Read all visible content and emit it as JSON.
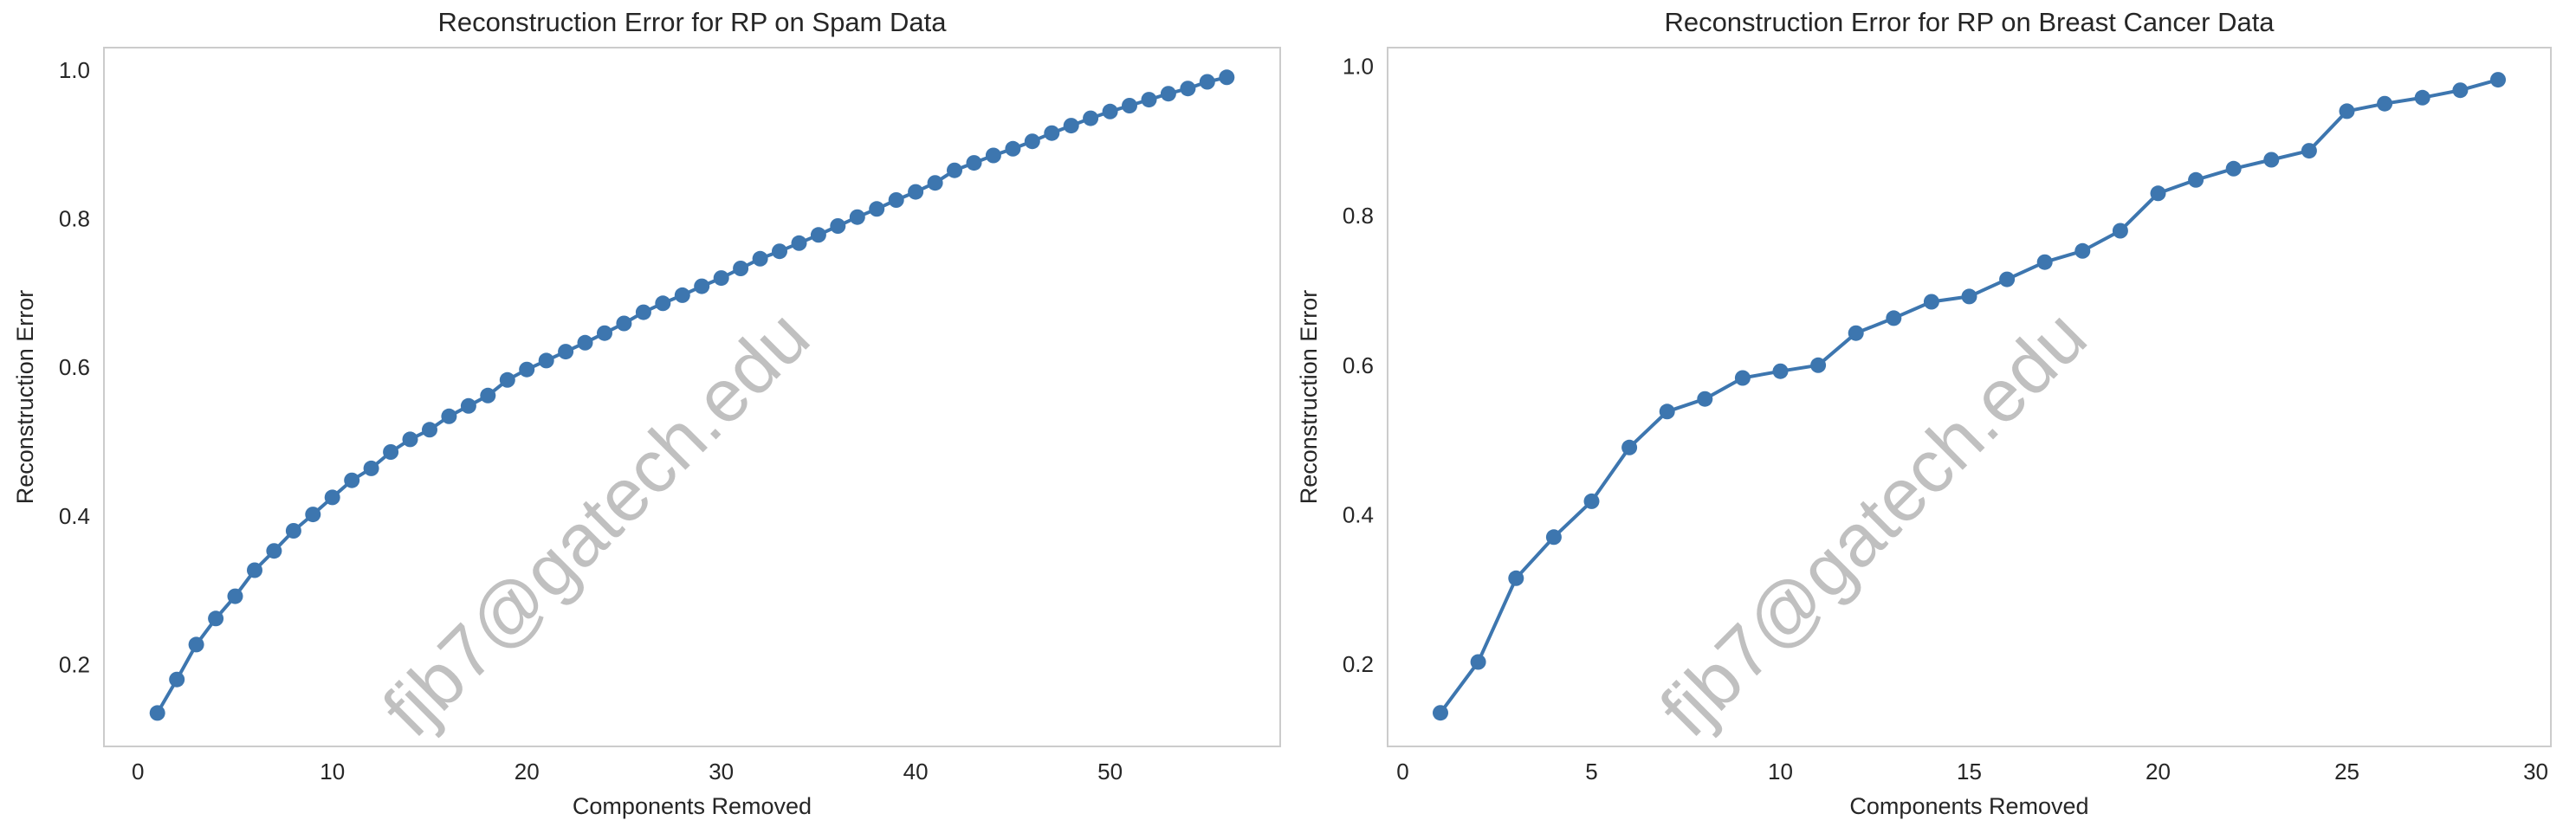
{
  "watermark": "fjb7@gatech.edu",
  "chart_data": [
    {
      "type": "line",
      "title": "Reconstruction Error for RP on Spam Data",
      "xlabel": "Components Removed",
      "ylabel": "Reconstruction Error",
      "xlim": [
        -1.75,
        58.75
      ],
      "ylim": [
        0.09,
        1.03
      ],
      "xticks": [
        0,
        10,
        20,
        30,
        40,
        50
      ],
      "yticks": [
        0.2,
        0.4,
        0.6,
        0.8,
        1.0
      ],
      "xtick_labels": [
        "0",
        "10",
        "20",
        "30",
        "40",
        "50"
      ],
      "ytick_labels": [
        "0.2",
        "0.4",
        "0.6",
        "0.8",
        "1.0"
      ],
      "grid": false,
      "color": "#3d76af",
      "marker": "circle",
      "x": [
        1,
        2,
        3,
        4,
        5,
        6,
        7,
        8,
        9,
        10,
        11,
        12,
        13,
        14,
        15,
        16,
        17,
        18,
        19,
        20,
        21,
        22,
        23,
        24,
        25,
        26,
        27,
        28,
        29,
        30,
        31,
        32,
        33,
        34,
        35,
        36,
        37,
        38,
        39,
        40,
        41,
        42,
        43,
        44,
        45,
        46,
        47,
        48,
        49,
        50,
        51,
        52,
        53,
        54,
        55,
        56
      ],
      "y": [
        0.135,
        0.18,
        0.227,
        0.262,
        0.292,
        0.327,
        0.353,
        0.38,
        0.402,
        0.425,
        0.448,
        0.464,
        0.486,
        0.503,
        0.516,
        0.534,
        0.548,
        0.562,
        0.583,
        0.597,
        0.609,
        0.621,
        0.633,
        0.646,
        0.659,
        0.674,
        0.686,
        0.697,
        0.709,
        0.72,
        0.733,
        0.746,
        0.756,
        0.767,
        0.778,
        0.79,
        0.802,
        0.813,
        0.825,
        0.836,
        0.848,
        0.865,
        0.875,
        0.885,
        0.894,
        0.904,
        0.915,
        0.925,
        0.935,
        0.944,
        0.952,
        0.96,
        0.968,
        0.975,
        0.984,
        0.99
      ]
    },
    {
      "type": "line",
      "title": "Reconstruction Error for RP on Breast Cancer Data",
      "xlabel": "Components Removed",
      "ylabel": "Reconstruction Error",
      "xlim": [
        -0.4,
        30.4
      ],
      "ylim": [
        0.09,
        1.025
      ],
      "xticks": [
        0,
        5,
        10,
        15,
        20,
        25,
        30
      ],
      "yticks": [
        0.2,
        0.4,
        0.6,
        0.8,
        1.0
      ],
      "xtick_labels": [
        "0",
        "5",
        "10",
        "15",
        "20",
        "25",
        "30"
      ],
      "ytick_labels": [
        "0.2",
        "0.4",
        "0.6",
        "0.8",
        "1.0"
      ],
      "grid": false,
      "color": "#3d76af",
      "marker": "circle",
      "x": [
        1,
        2,
        3,
        4,
        5,
        6,
        7,
        8,
        9,
        10,
        11,
        12,
        13,
        14,
        15,
        16,
        17,
        18,
        19,
        20,
        21,
        22,
        23,
        24,
        25,
        26,
        27,
        28,
        29
      ],
      "y": [
        0.135,
        0.203,
        0.315,
        0.37,
        0.418,
        0.49,
        0.538,
        0.555,
        0.583,
        0.592,
        0.6,
        0.643,
        0.663,
        0.685,
        0.692,
        0.715,
        0.738,
        0.753,
        0.78,
        0.83,
        0.848,
        0.863,
        0.875,
        0.887,
        0.94,
        0.95,
        0.958,
        0.968,
        0.982
      ]
    }
  ]
}
